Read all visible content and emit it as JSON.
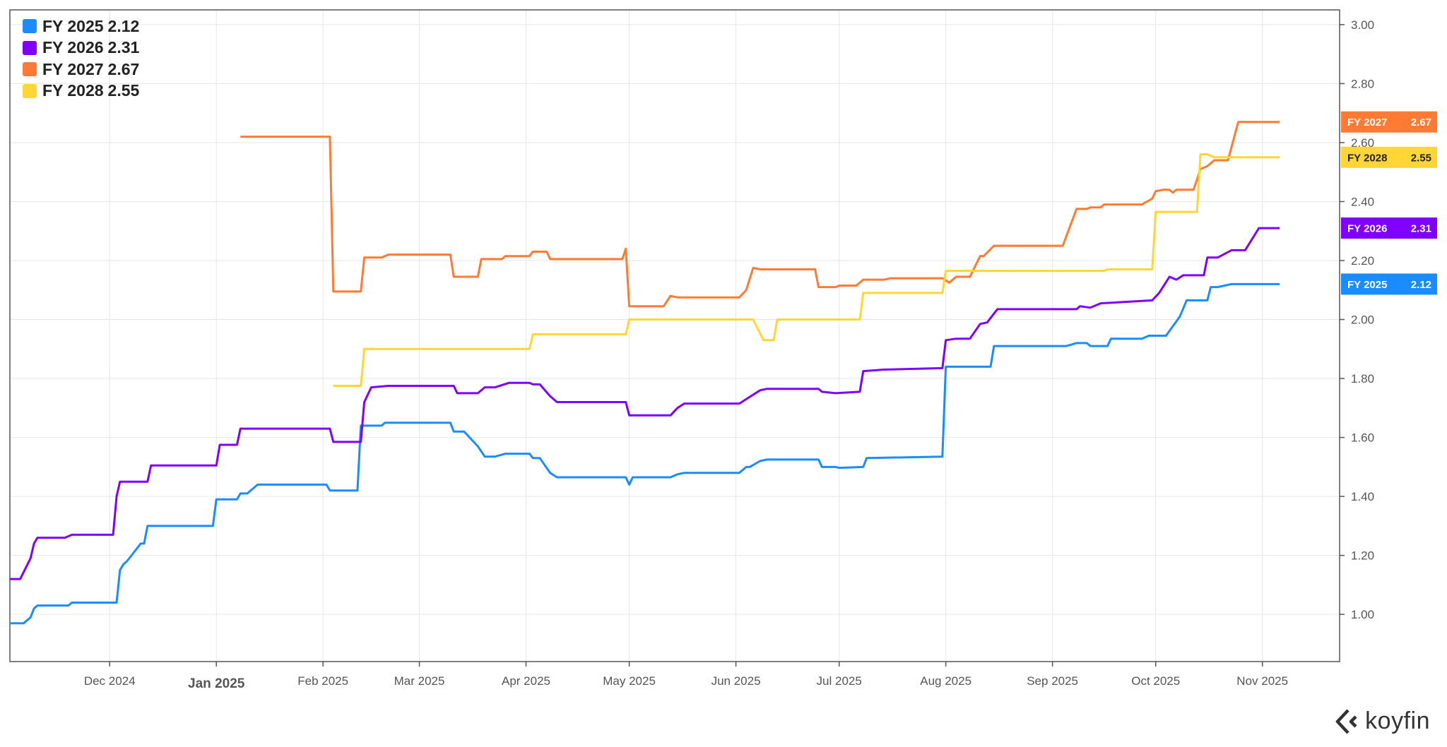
{
  "brand": {
    "name": "koyfin",
    "icon": "koyfin-logo-icon"
  },
  "chart_data": {
    "type": "line",
    "y_axis": {
      "position": "right",
      "range": [
        0.84,
        3.05
      ],
      "ticks": [
        1.0,
        1.2,
        1.4,
        1.6,
        1.8,
        2.0,
        2.2,
        2.4,
        2.6,
        2.8,
        3.0
      ],
      "tick_labels": [
        "1.00",
        "1.20",
        "1.40",
        "1.60",
        "1.80",
        "2.00",
        "2.20",
        "2.40",
        "2.60",
        "2.80",
        "3.00"
      ]
    },
    "x_axis": {
      "range": [
        "2024-11-02",
        "2025-11-14"
      ],
      "ticks": [
        {
          "date": "2024-12-01",
          "label": "Dec 2024",
          "major": false
        },
        {
          "date": "2025-01-01",
          "label": "Jan 2025",
          "major": true
        },
        {
          "date": "2025-02-01",
          "label": "Feb 2025",
          "major": false
        },
        {
          "date": "2025-03-01",
          "label": "Mar 2025",
          "major": false
        },
        {
          "date": "2025-04-01",
          "label": "Apr 2025",
          "major": false
        },
        {
          "date": "2025-05-01",
          "label": "May 2025",
          "major": false
        },
        {
          "date": "2025-06-01",
          "label": "Jun 2025",
          "major": false
        },
        {
          "date": "2025-07-01",
          "label": "Jul 2025",
          "major": false
        },
        {
          "date": "2025-08-01",
          "label": "Aug 2025",
          "major": false
        },
        {
          "date": "2025-09-01",
          "label": "Sep 2025",
          "major": false
        },
        {
          "date": "2025-10-01",
          "label": "Oct 2025",
          "major": false
        },
        {
          "date": "2025-11-01",
          "label": "Nov 2025",
          "major": false
        }
      ]
    },
    "grid": true,
    "legend_position": "top-left",
    "series": [
      {
        "name": "FY 2025",
        "last": "2.12",
        "color": "#1a8cff",
        "badge_text": "#ffffff",
        "points": [
          [
            "2024-11-02",
            0.97
          ],
          [
            "2024-11-06",
            0.97
          ],
          [
            "2024-11-08",
            0.99
          ],
          [
            "2024-11-09",
            1.02
          ],
          [
            "2024-11-10",
            1.03
          ],
          [
            "2024-11-19",
            1.03
          ],
          [
            "2024-11-20",
            1.04
          ],
          [
            "2024-12-03",
            1.04
          ],
          [
            "2024-12-04",
            1.15
          ],
          [
            "2024-12-05",
            1.17
          ],
          [
            "2024-12-06",
            1.18
          ],
          [
            "2024-12-08",
            1.21
          ],
          [
            "2024-12-10",
            1.24
          ],
          [
            "2024-12-11",
            1.24
          ],
          [
            "2024-12-12",
            1.3
          ],
          [
            "2024-12-31",
            1.3
          ],
          [
            "2025-01-01",
            1.39
          ],
          [
            "2025-01-07",
            1.39
          ],
          [
            "2025-01-08",
            1.41
          ],
          [
            "2025-01-10",
            1.41
          ],
          [
            "2025-01-13",
            1.44
          ],
          [
            "2025-02-02",
            1.44
          ],
          [
            "2025-02-03",
            1.42
          ],
          [
            "2025-02-11",
            1.42
          ],
          [
            "2025-02-12",
            1.64
          ],
          [
            "2025-02-18",
            1.64
          ],
          [
            "2025-02-19",
            1.65
          ],
          [
            "2025-03-10",
            1.65
          ],
          [
            "2025-03-11",
            1.62
          ],
          [
            "2025-03-14",
            1.62
          ],
          [
            "2025-03-18",
            1.57
          ],
          [
            "2025-03-20",
            1.535
          ],
          [
            "2025-03-23",
            1.535
          ],
          [
            "2025-03-26",
            1.545
          ],
          [
            "2025-04-02",
            1.545
          ],
          [
            "2025-04-03",
            1.53
          ],
          [
            "2025-04-05",
            1.53
          ],
          [
            "2025-04-08",
            1.48
          ],
          [
            "2025-04-10",
            1.465
          ],
          [
            "2025-04-30",
            1.465
          ],
          [
            "2025-05-01",
            1.44
          ],
          [
            "2025-05-02",
            1.465
          ],
          [
            "2025-05-13",
            1.465
          ],
          [
            "2025-05-15",
            1.475
          ],
          [
            "2025-05-17",
            1.48
          ],
          [
            "2025-06-02",
            1.48
          ],
          [
            "2025-06-04",
            1.5
          ],
          [
            "2025-06-05",
            1.5
          ],
          [
            "2025-06-08",
            1.52
          ],
          [
            "2025-06-10",
            1.525
          ],
          [
            "2025-06-25",
            1.525
          ],
          [
            "2025-06-26",
            1.5
          ],
          [
            "2025-06-30",
            1.5
          ],
          [
            "2025-07-01",
            1.497
          ],
          [
            "2025-07-08",
            1.5
          ],
          [
            "2025-07-09",
            1.53
          ],
          [
            "2025-07-31",
            1.535
          ],
          [
            "2025-08-01",
            1.84
          ],
          [
            "2025-08-11",
            1.84
          ],
          [
            "2025-08-14",
            1.84
          ],
          [
            "2025-08-15",
            1.91
          ],
          [
            "2025-09-05",
            1.91
          ],
          [
            "2025-09-08",
            1.92
          ],
          [
            "2025-09-11",
            1.92
          ],
          [
            "2025-09-12",
            1.91
          ],
          [
            "2025-09-17",
            1.91
          ],
          [
            "2025-09-18",
            1.935
          ],
          [
            "2025-09-27",
            1.935
          ],
          [
            "2025-09-29",
            1.945
          ],
          [
            "2025-10-04",
            1.945
          ],
          [
            "2025-10-08",
            2.01
          ],
          [
            "2025-10-10",
            2.065
          ],
          [
            "2025-10-16",
            2.065
          ],
          [
            "2025-10-17",
            2.11
          ],
          [
            "2025-10-19",
            2.11
          ],
          [
            "2025-10-23",
            2.12
          ],
          [
            "2025-11-06",
            2.12
          ]
        ]
      },
      {
        "name": "FY 2026",
        "last": "2.31",
        "color": "#8000ff",
        "badge_text": "#ffffff",
        "points": [
          [
            "2024-11-02",
            1.12
          ],
          [
            "2024-11-05",
            1.12
          ],
          [
            "2024-11-08",
            1.19
          ],
          [
            "2024-11-09",
            1.24
          ],
          [
            "2024-11-10",
            1.26
          ],
          [
            "2024-11-18",
            1.26
          ],
          [
            "2024-11-20",
            1.27
          ],
          [
            "2024-12-02",
            1.27
          ],
          [
            "2024-12-03",
            1.4
          ],
          [
            "2024-12-04",
            1.45
          ],
          [
            "2024-12-12",
            1.45
          ],
          [
            "2024-12-13",
            1.505
          ],
          [
            "2025-01-01",
            1.505
          ],
          [
            "2025-01-02",
            1.575
          ],
          [
            "2025-01-07",
            1.575
          ],
          [
            "2025-01-08",
            1.63
          ],
          [
            "2025-02-03",
            1.63
          ],
          [
            "2025-02-04",
            1.585
          ],
          [
            "2025-02-12",
            1.585
          ],
          [
            "2025-02-13",
            1.72
          ],
          [
            "2025-02-15",
            1.77
          ],
          [
            "2025-02-20",
            1.775
          ],
          [
            "2025-03-11",
            1.775
          ],
          [
            "2025-03-12",
            1.75
          ],
          [
            "2025-03-18",
            1.75
          ],
          [
            "2025-03-20",
            1.77
          ],
          [
            "2025-03-23",
            1.77
          ],
          [
            "2025-03-27",
            1.785
          ],
          [
            "2025-04-02",
            1.785
          ],
          [
            "2025-04-03",
            1.78
          ],
          [
            "2025-04-05",
            1.78
          ],
          [
            "2025-04-08",
            1.74
          ],
          [
            "2025-04-10",
            1.72
          ],
          [
            "2025-04-30",
            1.72
          ],
          [
            "2025-05-01",
            1.675
          ],
          [
            "2025-05-13",
            1.675
          ],
          [
            "2025-05-15",
            1.7
          ],
          [
            "2025-05-17",
            1.715
          ],
          [
            "2025-06-02",
            1.715
          ],
          [
            "2025-06-04",
            1.73
          ],
          [
            "2025-06-08",
            1.76
          ],
          [
            "2025-06-10",
            1.765
          ],
          [
            "2025-06-25",
            1.765
          ],
          [
            "2025-06-26",
            1.755
          ],
          [
            "2025-06-30",
            1.75
          ],
          [
            "2025-07-07",
            1.755
          ],
          [
            "2025-07-08",
            1.825
          ],
          [
            "2025-07-14",
            1.83
          ],
          [
            "2025-07-31",
            1.835
          ],
          [
            "2025-08-01",
            1.93
          ],
          [
            "2025-08-04",
            1.935
          ],
          [
            "2025-08-08",
            1.935
          ],
          [
            "2025-08-11",
            1.985
          ],
          [
            "2025-08-13",
            1.99
          ],
          [
            "2025-08-16",
            2.035
          ],
          [
            "2025-09-08",
            2.035
          ],
          [
            "2025-09-09",
            2.045
          ],
          [
            "2025-09-12",
            2.04
          ],
          [
            "2025-09-15",
            2.055
          ],
          [
            "2025-09-30",
            2.065
          ],
          [
            "2025-10-02",
            2.09
          ],
          [
            "2025-10-05",
            2.145
          ],
          [
            "2025-10-07",
            2.135
          ],
          [
            "2025-10-09",
            2.15
          ],
          [
            "2025-10-15",
            2.15
          ],
          [
            "2025-10-16",
            2.21
          ],
          [
            "2025-10-19",
            2.21
          ],
          [
            "2025-10-23",
            2.235
          ],
          [
            "2025-10-27",
            2.235
          ],
          [
            "2025-10-31",
            2.31
          ],
          [
            "2025-11-06",
            2.31
          ]
        ]
      },
      {
        "name": "FY 2027",
        "last": "2.67",
        "color": "#ff7a33",
        "badge_text": "#ffffff",
        "points": [
          [
            "2025-01-08",
            2.62
          ],
          [
            "2025-02-03",
            2.62
          ],
          [
            "2025-02-04",
            2.095
          ],
          [
            "2025-02-12",
            2.095
          ],
          [
            "2025-02-13",
            2.21
          ],
          [
            "2025-02-18",
            2.21
          ],
          [
            "2025-02-20",
            2.22
          ],
          [
            "2025-03-10",
            2.22
          ],
          [
            "2025-03-11",
            2.145
          ],
          [
            "2025-03-18",
            2.145
          ],
          [
            "2025-03-19",
            2.205
          ],
          [
            "2025-03-25",
            2.205
          ],
          [
            "2025-03-26",
            2.215
          ],
          [
            "2025-04-02",
            2.215
          ],
          [
            "2025-04-03",
            2.23
          ],
          [
            "2025-04-07",
            2.23
          ],
          [
            "2025-04-08",
            2.205
          ],
          [
            "2025-04-29",
            2.205
          ],
          [
            "2025-04-30",
            2.24
          ],
          [
            "2025-05-01",
            2.045
          ],
          [
            "2025-05-11",
            2.045
          ],
          [
            "2025-05-13",
            2.08
          ],
          [
            "2025-05-15",
            2.075
          ],
          [
            "2025-06-02",
            2.075
          ],
          [
            "2025-06-04",
            2.1
          ],
          [
            "2025-06-06",
            2.175
          ],
          [
            "2025-06-08",
            2.17
          ],
          [
            "2025-06-24",
            2.17
          ],
          [
            "2025-06-25",
            2.11
          ],
          [
            "2025-06-30",
            2.11
          ],
          [
            "2025-07-01",
            2.115
          ],
          [
            "2025-07-06",
            2.115
          ],
          [
            "2025-07-08",
            2.135
          ],
          [
            "2025-07-14",
            2.135
          ],
          [
            "2025-07-16",
            2.14
          ],
          [
            "2025-07-31",
            2.14
          ],
          [
            "2025-08-02",
            2.125
          ],
          [
            "2025-08-04",
            2.145
          ],
          [
            "2025-08-08",
            2.145
          ],
          [
            "2025-08-11",
            2.215
          ],
          [
            "2025-08-12",
            2.215
          ],
          [
            "2025-08-15",
            2.25
          ],
          [
            "2025-09-04",
            2.25
          ],
          [
            "2025-09-08",
            2.375
          ],
          [
            "2025-09-11",
            2.375
          ],
          [
            "2025-09-12",
            2.38
          ],
          [
            "2025-09-15",
            2.38
          ],
          [
            "2025-09-16",
            2.39
          ],
          [
            "2025-09-27",
            2.39
          ],
          [
            "2025-09-30",
            2.41
          ],
          [
            "2025-10-01",
            2.435
          ],
          [
            "2025-10-03",
            2.44
          ],
          [
            "2025-10-05",
            2.44
          ],
          [
            "2025-10-06",
            2.43
          ],
          [
            "2025-10-07",
            2.44
          ],
          [
            "2025-10-12",
            2.44
          ],
          [
            "2025-10-14",
            2.51
          ],
          [
            "2025-10-16",
            2.52
          ],
          [
            "2025-10-18",
            2.54
          ],
          [
            "2025-10-22",
            2.54
          ],
          [
            "2025-10-25",
            2.67
          ],
          [
            "2025-11-06",
            2.67
          ]
        ]
      },
      {
        "name": "FY 2028",
        "last": "2.55",
        "color": "#ffd633",
        "badge_text": "#222222",
        "points": [
          [
            "2025-02-04",
            1.775
          ],
          [
            "2025-02-12",
            1.775
          ],
          [
            "2025-02-13",
            1.9
          ],
          [
            "2025-04-02",
            1.9
          ],
          [
            "2025-04-03",
            1.95
          ],
          [
            "2025-04-30",
            1.95
          ],
          [
            "2025-05-01",
            2.0
          ],
          [
            "2025-06-06",
            2.0
          ],
          [
            "2025-06-09",
            1.93
          ],
          [
            "2025-06-12",
            1.93
          ],
          [
            "2025-06-13",
            2.0
          ],
          [
            "2025-07-07",
            2.0
          ],
          [
            "2025-07-08",
            2.09
          ],
          [
            "2025-07-31",
            2.09
          ],
          [
            "2025-08-01",
            2.165
          ],
          [
            "2025-09-16",
            2.165
          ],
          [
            "2025-09-17",
            2.17
          ],
          [
            "2025-09-30",
            2.17
          ],
          [
            "2025-10-01",
            2.365
          ],
          [
            "2025-10-13",
            2.365
          ],
          [
            "2025-10-14",
            2.56
          ],
          [
            "2025-10-16",
            2.56
          ],
          [
            "2025-10-18",
            2.55
          ],
          [
            "2025-11-06",
            2.55
          ]
        ]
      }
    ]
  }
}
